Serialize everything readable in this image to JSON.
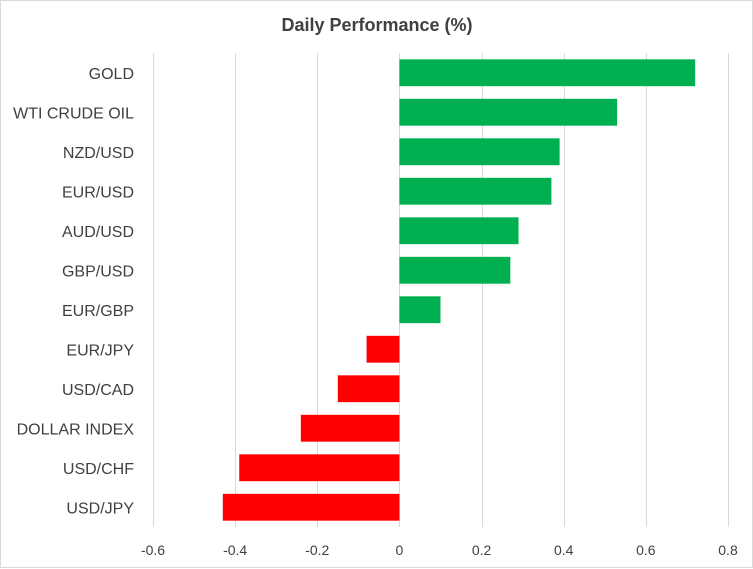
{
  "chart_data": {
    "type": "bar",
    "orientation": "horizontal",
    "title": "Daily Performance (%)",
    "xlabel": "",
    "ylabel": "",
    "xlim": [
      -0.6,
      0.8
    ],
    "xticks": [
      -0.6,
      -0.4,
      -0.2,
      0,
      0.2,
      0.4,
      0.6,
      0.8
    ],
    "xtick_labels": [
      "-0.6",
      "-0.4",
      "-0.2",
      "0",
      "0.2",
      "0.4",
      "0.6",
      "0.8"
    ],
    "grid": "vertical",
    "legend": "none",
    "categories": [
      "GOLD",
      "WTI CRUDE OIL",
      "NZD/USD",
      "EUR/USD",
      "AUD/USD",
      "GBP/USD",
      "EUR/GBP",
      "EUR/JPY",
      "USD/CAD",
      "DOLLAR INDEX",
      "USD/CHF",
      "USD/JPY"
    ],
    "values": [
      0.72,
      0.53,
      0.39,
      0.37,
      0.29,
      0.27,
      0.1,
      -0.08,
      -0.15,
      -0.24,
      -0.39,
      -0.43
    ],
    "colors": {
      "positive": "#00b050",
      "negative": "#ff0000"
    }
  }
}
